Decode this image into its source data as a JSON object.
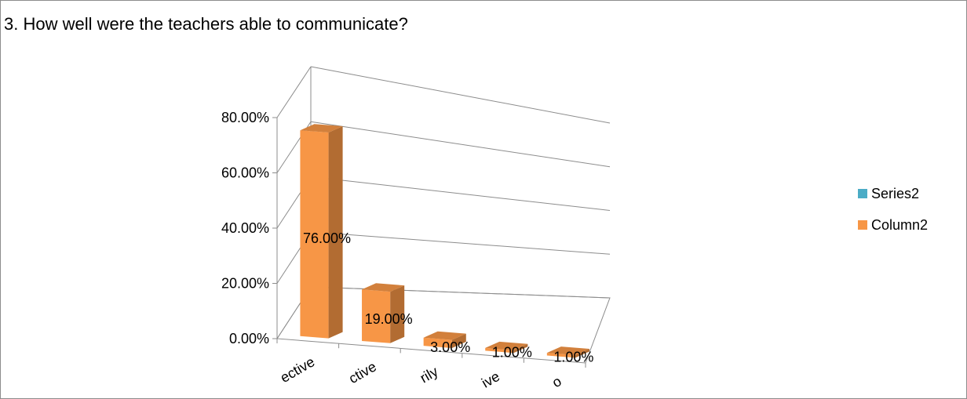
{
  "title": "3. How well were the teachers able to communicate?",
  "legend": [
    {
      "name": "Series2",
      "color": "#4bacc6"
    },
    {
      "name": "Column2",
      "color": "#f79646"
    }
  ],
  "chart_data": {
    "type": "bar",
    "style": "3d-column",
    "categories": [
      "Effective",
      "Effective",
      "Satisfactorily",
      "Ineffective",
      "No"
    ],
    "category_labels_visible": [
      "ective",
      "ctive",
      "rily",
      "ive",
      "o"
    ],
    "series": [
      {
        "name": "Series2",
        "values": [
          null,
          null,
          null,
          null,
          null
        ],
        "color": "#4bacc6"
      },
      {
        "name": "Column2",
        "values": [
          0.76,
          0.19,
          0.03,
          0.01,
          0.01
        ],
        "color": "#f79646"
      }
    ],
    "data_labels": [
      "76.00%",
      "19.00%",
      "3.00%",
      "1.00%",
      "1.00%"
    ],
    "y_ticks": [
      "0.00%",
      "20.00%",
      "40.00%",
      "60.00%",
      "80.00%"
    ],
    "ylim": [
      0,
      0.8
    ],
    "grid": true,
    "legend_position": "right"
  }
}
